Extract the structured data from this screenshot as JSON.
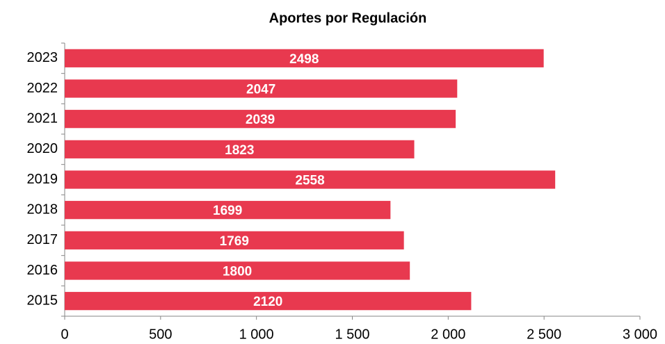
{
  "chart_data": {
    "type": "bar",
    "orientation": "horizontal",
    "title": "Aportes por Regulación",
    "categories": [
      "2023",
      "2022",
      "2021",
      "2020",
      "2019",
      "2018",
      "2017",
      "2016",
      "2015"
    ],
    "values": [
      2498,
      2047,
      2039,
      1823,
      2558,
      1699,
      1769,
      1800,
      2120
    ],
    "color": "#e8394f",
    "xlim": [
      0,
      3000
    ],
    "xticks": [
      0,
      500,
      {
        "value": 1000,
        "label": "1 000"
      },
      {
        "value": 1500,
        "label": "1 500"
      },
      {
        "value": 2000,
        "label": "2 000"
      },
      {
        "value": 2500,
        "label": "2 500"
      },
      {
        "value": 3000,
        "label": "3 000"
      }
    ],
    "grid": false
  }
}
